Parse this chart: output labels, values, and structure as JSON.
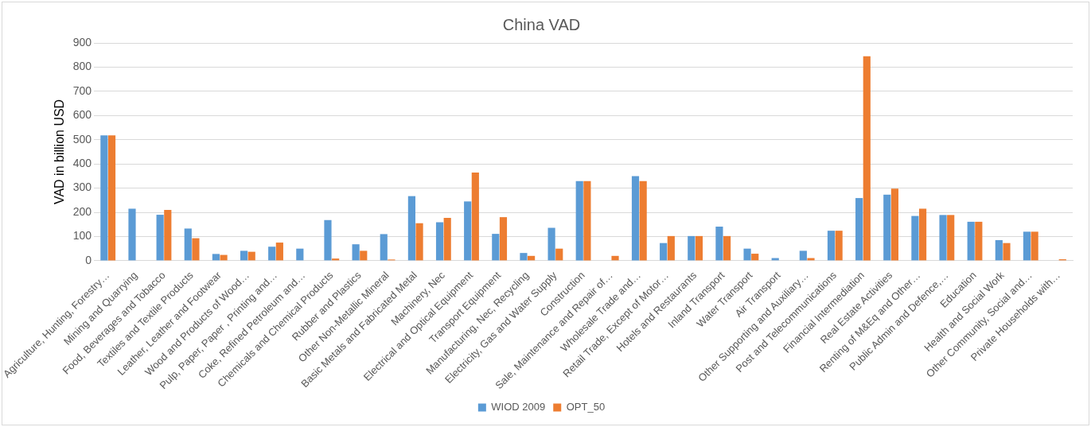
{
  "chart_data": {
    "type": "bar",
    "title": "China VAD",
    "ylabel": "VAD in billion USD",
    "categories": [
      "Agriculture, Hunting, Forestry…",
      "Mining and Quarrying",
      "Food, Beverages and Tobacco",
      "Textiles and Textile Products",
      "Leather, Leather and Footwear",
      "Wood and Products of Wood…",
      "Pulp, Paper, Paper , Printing and…",
      "Coke, Refined Petroleum and…",
      "Chemicals and Chemical Products",
      "Rubber and Plastics",
      "Other Non-Metallic Mineral",
      "Basic Metals and Fabricated Metal",
      "Machinery, Nec",
      "Electrical and Optical Equipment",
      "Transport Equipment",
      "Manufacturing, Nec, Recycling",
      "Electricity, Gas and Water Supply",
      "Construction",
      "Sale, Maintenance and Repair of…",
      "Wholesale Trade and…",
      "Retail Trade, Except of Motor…",
      "Hotels and Restaurants",
      "Inland Transport",
      "Water Transport",
      "Air Transport",
      "Other Supporting and Auxiliary…",
      "Post and Telecommunications",
      "Financial Intermediation",
      "Real Estate Activities",
      "Renting of M&Eq and Other…",
      "Public Admin and Defence,…",
      "Education",
      "Health and Social Work",
      "Other Community, Social and…",
      "Private Households with…"
    ],
    "series": [
      {
        "name": "WIOD 2009",
        "color": "#5b9bd5",
        "values": [
          518,
          215,
          190,
          133,
          28,
          41,
          58,
          50,
          168,
          68,
          110,
          267,
          159,
          245,
          111,
          32,
          136,
          329,
          0,
          350,
          73,
          102,
          141,
          50,
          11,
          41,
          124,
          259,
          273,
          185,
          189,
          161,
          85,
          120,
          0
        ]
      },
      {
        "name": "OPT_50",
        "color": "#ed7d31",
        "values": [
          518,
          0,
          210,
          93,
          24,
          37,
          75,
          0,
          9,
          41,
          5,
          155,
          177,
          364,
          180,
          20,
          50,
          329,
          20,
          329,
          102,
          102,
          102,
          29,
          0,
          11,
          124,
          845,
          298,
          215,
          189,
          161,
          73,
          120,
          6
        ]
      }
    ],
    "ylim": [
      0,
      900
    ],
    "yticks": [
      0,
      100,
      200,
      300,
      400,
      500,
      600,
      700,
      800,
      900
    ],
    "grid": "y",
    "legend": "bottom"
  }
}
